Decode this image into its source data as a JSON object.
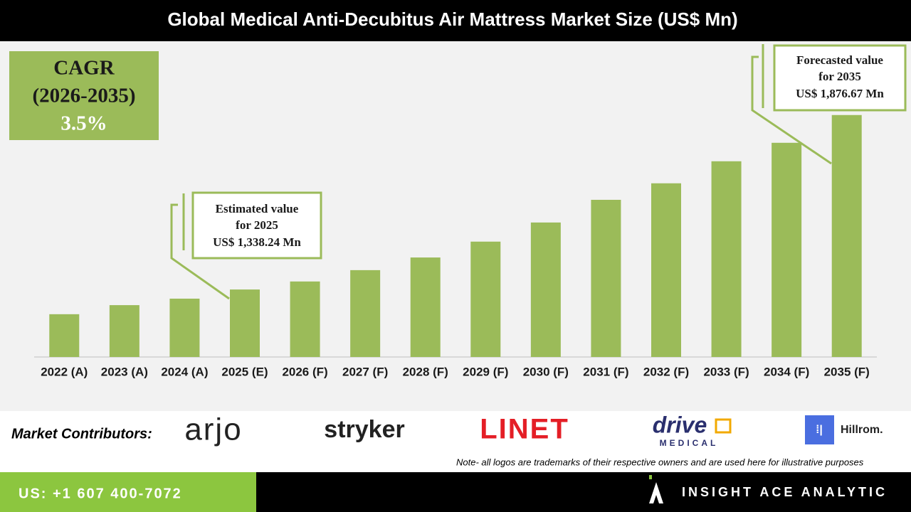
{
  "header": {
    "title": "Global Medical Anti-Decubitus Air Mattress Market Size (US$ Mn)"
  },
  "chart_data": {
    "type": "bar",
    "categories": [
      "2022 (A)",
      "2023 (A)",
      "2024 (A)",
      "2025 (E)",
      "2026 (F)",
      "2027 (F)",
      "2028 (F)",
      "2029 (F)",
      "2030 (F)",
      "2031 (F)",
      "2032 (F)",
      "2033 (F)",
      "2034 (F)",
      "2035 (F)"
    ],
    "values": [
      1262,
      1290,
      1310,
      1338.24,
      1363,
      1398,
      1437,
      1486,
      1545,
      1615,
      1666,
      1734,
      1791,
      1876.67
    ],
    "color": "#9bbb59",
    "ylim": [
      1130,
      2100
    ],
    "annotations": [
      {
        "lines": [
          "Estimated value",
          "for 2025",
          "US$ 1,338.24 Mn"
        ]
      },
      {
        "lines": [
          "Forecasted value",
          "for 2035",
          "US$ 1,876.67 Mn"
        ]
      }
    ]
  },
  "cagr": {
    "lines": [
      "CAGR",
      "(2026-2035)",
      "3.5%"
    ]
  },
  "contributors": {
    "label": "Market Contributors:",
    "logos": [
      "arjo",
      "stryker",
      "LINET",
      "drive",
      "MEDICAL",
      "Hillrom."
    ]
  },
  "note": "Note- all logos are trademarks of their respective owners and are used here for illustrative purposes",
  "footer": {
    "phone": "US: +1 607 400-7072",
    "brand": "INSIGHT ACE ANALYTIC"
  }
}
